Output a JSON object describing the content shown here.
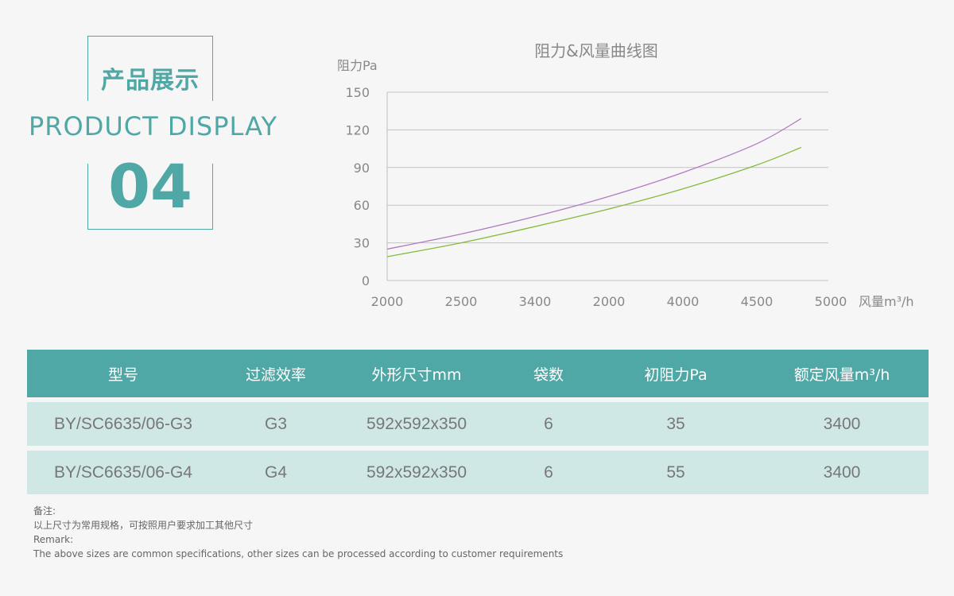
{
  "heading": {
    "title_cn": "产品展示",
    "title_en": "PRODUCT  DISPLAY",
    "number": "04"
  },
  "colors": {
    "accent": "#4fa8a5",
    "row_bg": "#cfe8e6",
    "series_purple": "#b07cc0",
    "series_green": "#86bb3c"
  },
  "chart_data": {
    "type": "line",
    "title": "阻力&风量曲线图",
    "ylabel": "阻力Pa",
    "xlabel": "风量m³/h",
    "x_tick_labels": [
      "2000",
      "2500",
      "3400",
      "2000",
      "4000",
      "4500",
      "5000"
    ],
    "y_ticks": [
      0,
      30,
      60,
      90,
      120,
      150
    ],
    "ylim": [
      0,
      150
    ],
    "grid": true,
    "series": [
      {
        "color": "#b07cc0",
        "points": [
          [
            0.0,
            25
          ],
          [
            1.0,
            37
          ],
          [
            2.0,
            51
          ],
          [
            3.0,
            67
          ],
          [
            4.0,
            86
          ],
          [
            5.0,
            109
          ],
          [
            5.6,
            129
          ]
        ]
      },
      {
        "color": "#86bb3c",
        "points": [
          [
            0.0,
            19
          ],
          [
            1.0,
            30
          ],
          [
            2.0,
            43
          ],
          [
            3.0,
            57
          ],
          [
            4.0,
            73
          ],
          [
            5.0,
            92
          ],
          [
            5.6,
            106
          ]
        ]
      }
    ]
  },
  "table": {
    "headers": {
      "model": "型号",
      "efficiency": "过滤效率",
      "size": "外形尺寸mm",
      "bags": "袋数",
      "resistance": "初阻力Pa",
      "airflow": "额定风量m³/h"
    },
    "rows": [
      {
        "model": "BY/SC6635/06-G3",
        "efficiency": "G3",
        "size": "592x592x350",
        "bags": "6",
        "resistance": "35",
        "airflow": "3400"
      },
      {
        "model": "BY/SC6635/06-G4",
        "efficiency": "G4",
        "size": "592x592x350",
        "bags": "6",
        "resistance": "55",
        "airflow": "3400"
      }
    ]
  },
  "notes": {
    "label_cn": "备注:",
    "text_cn": "以上尺寸为常用规格，可按照用户要求加工其他尺寸",
    "label_en": "Remark:",
    "text_en": "The above sizes are common specifications, other sizes can be processed according to customer requirements"
  }
}
